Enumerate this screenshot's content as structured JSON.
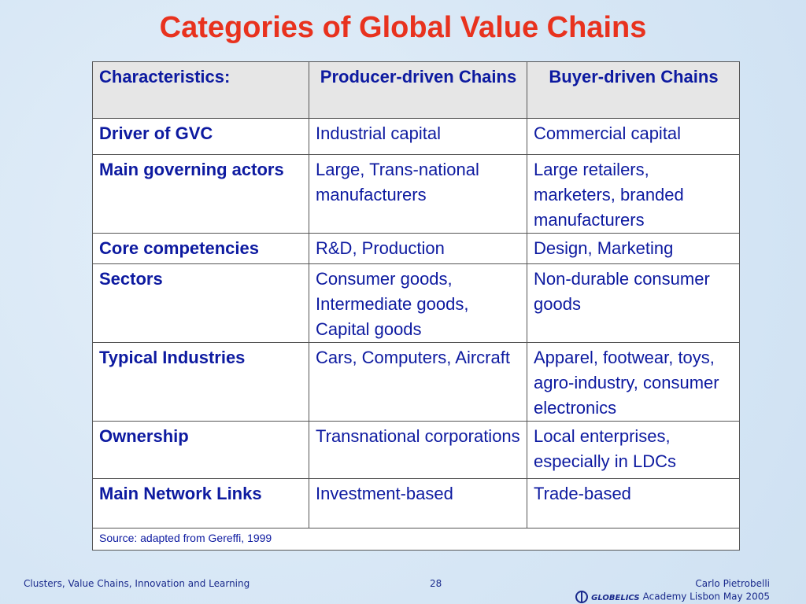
{
  "title": "Categories of Global Value Chains",
  "table": {
    "header": [
      "Characteristics:",
      "Producer-driven Chains",
      "Buyer-driven Chains"
    ],
    "rows": [
      [
        "Driver of GVC",
        "Industrial capital",
        "Commercial capital"
      ],
      [
        "Main governing actors",
        "Large, Trans-national manufacturers",
        "Large retailers, marketers, branded manufacturers"
      ],
      [
        "Core competencies",
        "R&D, Production",
        "Design, Marketing"
      ],
      [
        "Sectors",
        "Consumer goods, Intermediate goods, Capital goods",
        "Non-durable consumer goods"
      ],
      [
        "Typical Industries",
        "Cars, Computers, Aircraft",
        "Apparel, footwear, toys, agro-industry, consumer electronics"
      ],
      [
        "Ownership",
        "Transnational corporations",
        "Local enterprises, especially in LDCs"
      ],
      [
        "Main Network Links",
        "Investment-based",
        "Trade-based"
      ]
    ],
    "source": "Source: adapted from Gereffi, 1999"
  },
  "footer": {
    "left": "Clusters, Value Chains, Innovation and Learning",
    "page": "28",
    "logo": "GLOBELICS",
    "right": [
      "Carlo Pietrobelli",
      "Academy Lisbon May 2005"
    ]
  }
}
